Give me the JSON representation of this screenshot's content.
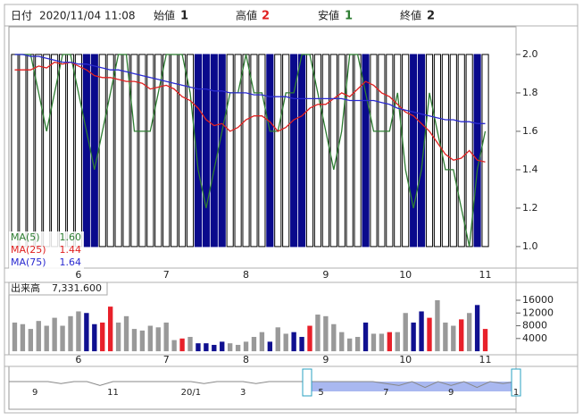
{
  "header": {
    "date_label": "日付",
    "date": "2020/11/04 11:08",
    "open_label": "始値",
    "open": "1",
    "high_label": "高値",
    "high": "2",
    "low_label": "安値",
    "low": "1",
    "close_label": "終値",
    "close": "2"
  },
  "chart_data": [
    {
      "type": "candlestick",
      "categories": [
        null,
        null,
        null,
        null,
        null,
        null,
        null,
        null,
        "6",
        null,
        null,
        null,
        null,
        null,
        null,
        null,
        null,
        null,
        null,
        "7",
        null,
        null,
        null,
        null,
        null,
        null,
        null,
        null,
        null,
        "8",
        null,
        null,
        null,
        null,
        null,
        null,
        null,
        null,
        null,
        "9",
        null,
        null,
        null,
        null,
        null,
        null,
        null,
        null,
        null,
        "10",
        null,
        null,
        null,
        null,
        null,
        null,
        null,
        null,
        null,
        "11"
      ],
      "open": [
        1,
        1,
        1,
        1,
        1,
        1,
        1,
        1,
        1,
        2,
        2,
        1,
        1,
        1,
        1,
        1,
        1,
        1,
        1,
        1,
        1,
        1,
        1,
        2,
        2,
        2,
        2,
        1,
        1,
        1,
        1,
        1,
        2,
        1,
        1,
        2,
        2,
        1,
        1,
        1,
        1,
        1,
        1,
        1,
        2,
        1,
        1,
        1,
        1,
        1,
        2,
        2,
        1,
        1,
        1,
        1,
        1,
        1,
        2,
        1
      ],
      "high": [
        2,
        2,
        2,
        2,
        2,
        2,
        2,
        2,
        2,
        2,
        2,
        2,
        2,
        2,
        2,
        2,
        2,
        2,
        2,
        2,
        2,
        2,
        2,
        2,
        2,
        2,
        2,
        2,
        2,
        2,
        2,
        2,
        2,
        2,
        2,
        2,
        2,
        2,
        2,
        2,
        2,
        2,
        2,
        2,
        2,
        2,
        2,
        2,
        2,
        2,
        2,
        2,
        2,
        2,
        2,
        2,
        2,
        2,
        2,
        2
      ],
      "low": [
        1,
        1,
        1,
        1,
        1,
        1,
        1,
        1,
        1,
        1,
        1,
        1,
        1,
        1,
        1,
        1,
        1,
        1,
        1,
        1,
        1,
        1,
        1,
        1,
        1,
        1,
        1,
        1,
        1,
        1,
        1,
        1,
        1,
        1,
        1,
        1,
        1,
        1,
        1,
        1,
        1,
        1,
        1,
        1,
        1,
        1,
        1,
        1,
        1,
        1,
        1,
        1,
        1,
        1,
        1,
        1,
        1,
        1,
        1,
        1
      ],
      "close": [
        2,
        2,
        2,
        2,
        2,
        2,
        2,
        2,
        2,
        1,
        1,
        2,
        2,
        2,
        2,
        2,
        2,
        2,
        2,
        2,
        2,
        2,
        2,
        1,
        1,
        1,
        1,
        2,
        2,
        2,
        2,
        2,
        1,
        2,
        2,
        1,
        1,
        2,
        2,
        2,
        2,
        2,
        2,
        2,
        1,
        2,
        2,
        2,
        2,
        2,
        1,
        1,
        2,
        2,
        2,
        2,
        2,
        2,
        1,
        2
      ],
      "up_color": "#ffffff",
      "down_color": "#0a0a8c",
      "series": [
        {
          "name": "MA(5)",
          "legend_value": "1.60",
          "color": "#2e7d32",
          "values": [
            2.0,
            2.0,
            2.0,
            1.8,
            1.6,
            1.8,
            2.0,
            2.0,
            1.8,
            1.6,
            1.4,
            1.6,
            1.8,
            2.0,
            2.0,
            1.6,
            1.6,
            1.6,
            1.8,
            2.0,
            2.0,
            2.0,
            1.8,
            1.4,
            1.2,
            1.4,
            1.6,
            1.8,
            1.8,
            2.0,
            1.8,
            1.8,
            1.6,
            1.6,
            1.8,
            1.8,
            2.0,
            2.0,
            1.8,
            1.6,
            1.4,
            1.6,
            2.0,
            2.0,
            1.8,
            1.6,
            1.6,
            1.6,
            1.8,
            1.4,
            1.2,
            1.4,
            1.8,
            1.6,
            1.4,
            1.4,
            1.2,
            1.0,
            1.4,
            1.6
          ]
        },
        {
          "name": "MA(25)",
          "legend_value": "1.44",
          "color": "#e02020",
          "values": [
            1.92,
            1.92,
            1.92,
            1.94,
            1.93,
            1.96,
            1.95,
            1.96,
            1.94,
            1.92,
            1.89,
            1.88,
            1.88,
            1.87,
            1.86,
            1.86,
            1.85,
            1.82,
            1.83,
            1.84,
            1.82,
            1.78,
            1.76,
            1.72,
            1.66,
            1.63,
            1.64,
            1.6,
            1.62,
            1.66,
            1.68,
            1.68,
            1.65,
            1.6,
            1.62,
            1.66,
            1.68,
            1.72,
            1.74,
            1.74,
            1.77,
            1.8,
            1.78,
            1.82,
            1.86,
            1.84,
            1.8,
            1.78,
            1.74,
            1.7,
            1.68,
            1.64,
            1.6,
            1.54,
            1.48,
            1.45,
            1.46,
            1.5,
            1.45,
            1.44
          ]
        },
        {
          "name": "MA(75)",
          "legend_value": "1.64",
          "color": "#2a2ad0",
          "values": [
            2.0,
            2.0,
            1.99,
            1.99,
            1.98,
            1.97,
            1.96,
            1.96,
            1.95,
            1.95,
            1.94,
            1.93,
            1.92,
            1.92,
            1.91,
            1.9,
            1.89,
            1.88,
            1.87,
            1.86,
            1.85,
            1.84,
            1.83,
            1.82,
            1.82,
            1.81,
            1.81,
            1.8,
            1.8,
            1.8,
            1.79,
            1.79,
            1.78,
            1.78,
            1.78,
            1.77,
            1.77,
            1.77,
            1.77,
            1.77,
            1.77,
            1.77,
            1.76,
            1.76,
            1.76,
            1.76,
            1.75,
            1.74,
            1.72,
            1.71,
            1.7,
            1.69,
            1.68,
            1.67,
            1.66,
            1.66,
            1.65,
            1.65,
            1.64,
            1.64
          ]
        }
      ],
      "ylim": [
        0.888,
        2.144
      ],
      "yticks": [
        {
          "value": 1,
          "label": "1.0"
        },
        {
          "value": 1.2,
          "label": "1.2"
        },
        {
          "value": 1.4,
          "label": "1.4"
        },
        {
          "value": 1.6,
          "label": "1.6"
        },
        {
          "value": 1.8,
          "label": "1.8"
        },
        {
          "value": 2,
          "label": "2.0"
        }
      ]
    },
    {
      "type": "bar",
      "title": "出来高",
      "value_label": "7,331.600",
      "categories": [
        null,
        null,
        null,
        null,
        null,
        null,
        null,
        null,
        "6",
        null,
        null,
        null,
        null,
        null,
        null,
        null,
        null,
        null,
        null,
        "7",
        null,
        null,
        null,
        null,
        null,
        null,
        null,
        null,
        null,
        "8",
        null,
        null,
        null,
        null,
        null,
        null,
        null,
        null,
        null,
        "9",
        null,
        null,
        null,
        null,
        null,
        null,
        null,
        null,
        null,
        "10",
        null,
        null,
        null,
        null,
        null,
        null,
        null,
        null,
        null,
        "11"
      ],
      "values": [
        9000,
        8500,
        7000,
        9500,
        8000,
        10500,
        8000,
        11000,
        12500,
        12000,
        8500,
        9000,
        14000,
        9000,
        11000,
        7000,
        6500,
        8000,
        7500,
        9000,
        3500,
        4000,
        4500,
        2500,
        2500,
        2000,
        3000,
        2500,
        2000,
        3000,
        4500,
        6000,
        3000,
        7500,
        5500,
        6000,
        4500,
        8000,
        11500,
        11000,
        8500,
        6000,
        4000,
        4500,
        9000,
        5500,
        5500,
        6000,
        6000,
        12000,
        9000,
        12500,
        10500,
        16000,
        9000,
        8000,
        10000,
        12000,
        14500,
        7000
      ],
      "colors": [
        "#999999",
        "#999999",
        "#999999",
        "#999999",
        "#999999",
        "#999999",
        "#999999",
        "#999999",
        "#999999",
        "#101090",
        "#101090",
        "#e8202a",
        "#e8202a",
        "#999999",
        "#999999",
        "#999999",
        "#999999",
        "#999999",
        "#999999",
        "#999999",
        "#999999",
        "#e8202a",
        "#999999",
        "#101090",
        "#101090",
        "#101090",
        "#101090",
        "#999999",
        "#999999",
        "#999999",
        "#999999",
        "#999999",
        "#101090",
        "#999999",
        "#999999",
        "#101090",
        "#101090",
        "#e8202a",
        "#999999",
        "#999999",
        "#999999",
        "#999999",
        "#999999",
        "#999999",
        "#101090",
        "#999999",
        "#999999",
        "#e8202a",
        "#999999",
        "#999999",
        "#101090",
        "#101090",
        "#e8202a",
        "#999999",
        "#999999",
        "#999999",
        "#e8202a",
        "#999999",
        "#101090",
        "#e8202a"
      ],
      "ylim": [
        -1100,
        21600
      ],
      "yticks": [
        4000,
        8000,
        12000,
        16000
      ]
    },
    {
      "type": "line",
      "categories": [
        null,
        null,
        "9",
        null,
        null,
        null,
        null,
        null,
        "11",
        null,
        null,
        null,
        null,
        null,
        "20/1",
        null,
        null,
        null,
        "3",
        null,
        null,
        null,
        null,
        null,
        "5",
        null,
        null,
        null,
        null,
        "7",
        null,
        null,
        null,
        null,
        "9",
        null,
        null,
        null,
        null,
        "1"
      ],
      "values": [
        5,
        5,
        5,
        5,
        4,
        5,
        5,
        3,
        5,
        5,
        5,
        5,
        5,
        5,
        5,
        4,
        5,
        5,
        5,
        4,
        5,
        5,
        5,
        5,
        5,
        5,
        5,
        5,
        5,
        4,
        3,
        5,
        2,
        5,
        3,
        5,
        2,
        5,
        4,
        5
      ],
      "color": "#888888",
      "selection_color": "#a9b8f0",
      "ylim": [
        0,
        10
      ]
    }
  ]
}
